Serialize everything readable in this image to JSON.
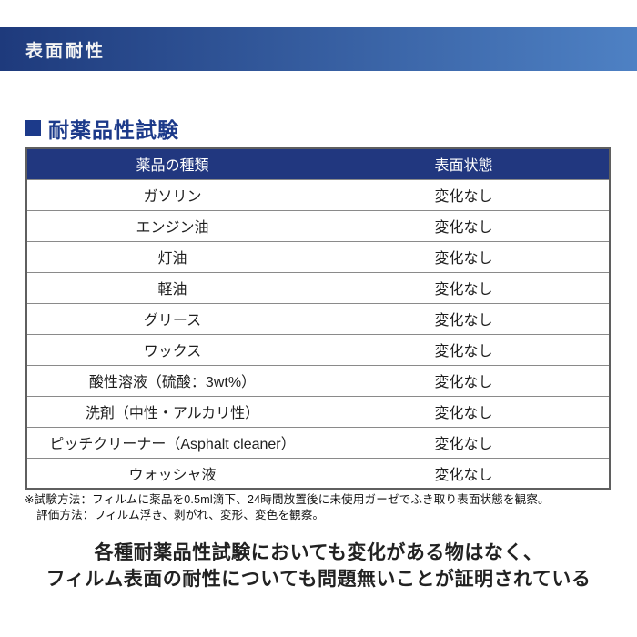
{
  "header": {
    "title": "表面耐性"
  },
  "section": {
    "bullet": "■",
    "title": "耐薬品性試験"
  },
  "table": {
    "columns": [
      "薬品の種類",
      "表面状態"
    ],
    "rows": [
      [
        "ガソリン",
        "変化なし"
      ],
      [
        "エンジン油",
        "変化なし"
      ],
      [
        "灯油",
        "変化なし"
      ],
      [
        "軽油",
        "変化なし"
      ],
      [
        "グリース",
        "変化なし"
      ],
      [
        "ワックス",
        "変化なし"
      ],
      [
        "酸性溶液（硫酸：3wt%）",
        "変化なし"
      ],
      [
        "洗剤（中性・アルカリ性）",
        "変化なし"
      ],
      [
        "ピッチクリーナー（Asphalt cleaner）",
        "変化なし"
      ],
      [
        "ウォッシャ液",
        "変化なし"
      ]
    ]
  },
  "notes": [
    "※試験方法：フィルムに薬品を0.5ml滴下、24時間放置後に未使用ガーゼでふき取り表面状態を観察。",
    "評価方法：フィルム浮き、剥がれ、変形、変色を観察。"
  ],
  "conclusion": [
    "各種耐薬品性試験においても変化がある物はなく、",
    "フィルム表面の耐性についても問題無いことが証明されている"
  ],
  "colors": {
    "bar_gradient_start": "#1e3a7c",
    "bar_gradient_end": "#4e81c4",
    "table_header_bg": "#21377f",
    "title_color": "#1c3a8a"
  }
}
